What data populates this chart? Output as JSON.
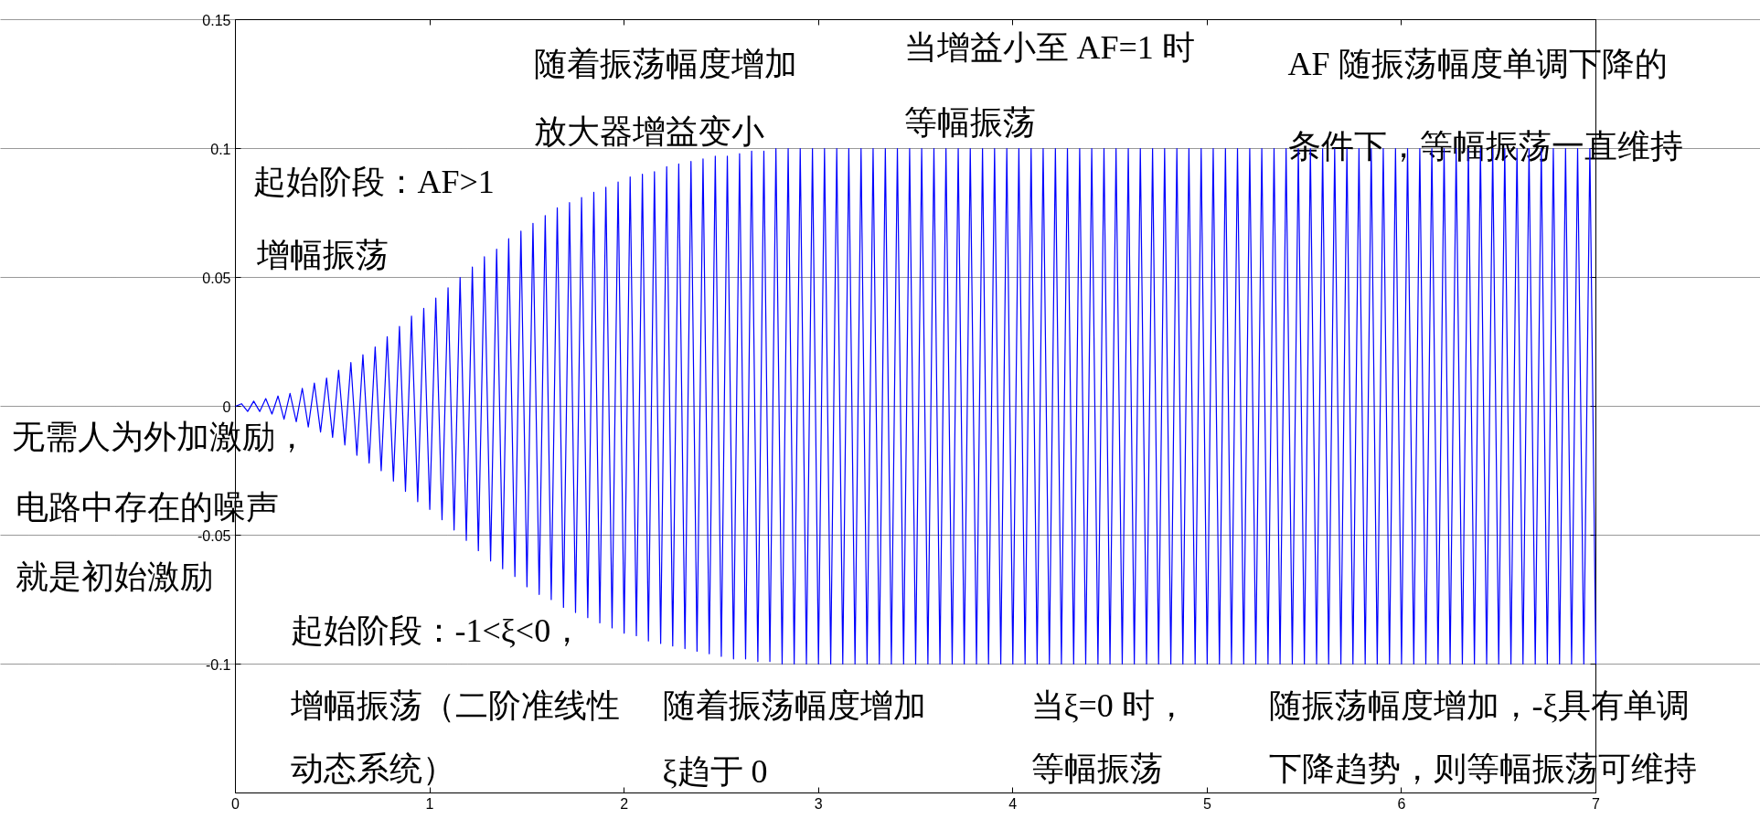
{
  "chart_data": {
    "type": "line",
    "annotations": [
      "随着振荡幅度增加",
      "放大器增益变小",
      "当增益小至 AF=1 时",
      "等幅振荡",
      "AF  随振荡幅度单调下降的",
      "条件下，等幅振荡一直维持",
      "起始阶段：AF>1",
      "增幅振荡",
      "无需人为外加激励，",
      "电路中存在的噪声",
      "就是初始激励",
      "起始阶段：-1<ξ<0，",
      "增幅振荡（二阶准线性",
      "动态系统）",
      "随着振荡幅度增加",
      "ξ趋于 0",
      "当ξ=0  时，",
      "等幅振荡",
      "随振荡幅度增加，-ξ具有单调",
      "下降趋势，则等幅振荡可维持"
    ],
    "xlim": [
      0,
      7
    ],
    "ylim": [
      -0.15,
      0.15
    ],
    "xticks": [
      0,
      1,
      2,
      3,
      4,
      5,
      6,
      7
    ],
    "yticks": [
      -0.1,
      -0.05,
      0,
      0.05,
      0.1,
      0.15
    ],
    "grid": "y",
    "series": [
      {
        "color": "#0000ff",
        "x": [
          0,
          0.031,
          0.063,
          0.094,
          0.125,
          0.156,
          0.188,
          0.219,
          0.25,
          0.281,
          0.313,
          0.344,
          0.375,
          0.406,
          0.438,
          0.469,
          0.5,
          0.531,
          0.563,
          0.594,
          0.625,
          0.656,
          0.688,
          0.719,
          0.75,
          0.781,
          0.813,
          0.844,
          0.875,
          0.906,
          0.938,
          0.969,
          1.0,
          1.031,
          1.063,
          1.094,
          1.125,
          1.156,
          1.188,
          1.219,
          1.25,
          1.281,
          1.313,
          1.344,
          1.375,
          1.406,
          1.438,
          1.469,
          1.5,
          1.531,
          1.563,
          1.594,
          1.625,
          1.656,
          1.688,
          1.719,
          1.75,
          1.781,
          1.813,
          1.844,
          1.875,
          1.906,
          1.938,
          1.969,
          2.0,
          2.031,
          2.063,
          2.094,
          2.125,
          2.156,
          2.188,
          2.219,
          2.25,
          2.281,
          2.313,
          2.344,
          2.375,
          2.406,
          2.438,
          2.469,
          2.5,
          2.531,
          2.563,
          2.594,
          2.625,
          2.656,
          2.688,
          2.719,
          2.75,
          2.781,
          2.813,
          2.844,
          2.875,
          2.906,
          2.938,
          2.969,
          3.0,
          3.031,
          3.063,
          3.094,
          3.125,
          3.156,
          3.188,
          3.219,
          3.25,
          3.281,
          3.313,
          3.344,
          3.375,
          3.406,
          3.438,
          3.469,
          3.5,
          3.531,
          3.563,
          3.594,
          3.625,
          3.656,
          3.688,
          3.719,
          3.75,
          3.781,
          3.813,
          3.844,
          3.875,
          3.906,
          3.938,
          3.969,
          4.0,
          4.031,
          4.063,
          4.094,
          4.125,
          4.156,
          4.188,
          4.219,
          4.25,
          4.281,
          4.313,
          4.344,
          4.375,
          4.406,
          4.438,
          4.469,
          4.5,
          4.531,
          4.563,
          4.594,
          4.625,
          4.656,
          4.688,
          4.719,
          4.75,
          4.781,
          4.813,
          4.844,
          4.875,
          4.906,
          4.938,
          4.969,
          5.0,
          5.031,
          5.063,
          5.094,
          5.125,
          5.156,
          5.188,
          5.219,
          5.25,
          5.281,
          5.313,
          5.344,
          5.375,
          5.406,
          5.438,
          5.469,
          5.5,
          5.531,
          5.563,
          5.594,
          5.625,
          5.656,
          5.688,
          5.719,
          5.75,
          5.781,
          5.813,
          5.844,
          5.875,
          5.906,
          5.938,
          5.969,
          6.0,
          6.031,
          6.063,
          6.094,
          6.125,
          6.156,
          6.188,
          6.219,
          6.25,
          6.281,
          6.313,
          6.344,
          6.375,
          6.406,
          6.438,
          6.469,
          6.5,
          6.531,
          6.563,
          6.594,
          6.625,
          6.656,
          6.688,
          6.719,
          6.75,
          6.781,
          6.813,
          6.844,
          6.875,
          6.906,
          6.938,
          6.969,
          7.0
        ],
        "values": [
          0,
          0.001,
          -0.002,
          0.002,
          -0.002,
          0.003,
          -0.003,
          0.004,
          -0.005,
          0.005,
          -0.006,
          0.007,
          -0.008,
          0.009,
          -0.01,
          0.011,
          -0.012,
          0.014,
          -0.015,
          0.017,
          -0.019,
          0.02,
          -0.022,
          0.023,
          -0.025,
          0.027,
          -0.029,
          0.031,
          -0.033,
          0.035,
          -0.037,
          0.038,
          -0.04,
          0.042,
          -0.044,
          0.046,
          -0.048,
          0.05,
          -0.052,
          0.054,
          -0.056,
          0.058,
          -0.06,
          0.061,
          -0.063,
          0.065,
          -0.066,
          0.068,
          -0.07,
          0.071,
          -0.073,
          0.074,
          -0.075,
          0.077,
          -0.078,
          0.079,
          -0.08,
          0.081,
          -0.082,
          0.083,
          -0.084,
          0.085,
          -0.086,
          0.087,
          -0.088,
          0.089,
          -0.089,
          0.09,
          -0.091,
          0.091,
          -0.092,
          0.093,
          -0.093,
          0.094,
          -0.094,
          0.095,
          -0.095,
          0.096,
          -0.096,
          0.097,
          -0.097,
          0.097,
          -0.098,
          0.098,
          -0.098,
          0.099,
          -0.099,
          0.099,
          -0.099,
          0.1,
          -0.1,
          0.1,
          -0.1,
          0.1,
          -0.1,
          0.1,
          -0.1,
          0.1,
          -0.1,
          0.1,
          -0.1,
          0.1,
          -0.1,
          0.1,
          -0.1,
          0.1,
          -0.1,
          0.1,
          -0.1,
          0.1,
          -0.1,
          0.1,
          -0.1,
          0.1,
          -0.1,
          0.1,
          -0.1,
          0.1,
          -0.1,
          0.1,
          -0.1,
          0.1,
          -0.1,
          0.1,
          -0.1,
          0.1,
          -0.1,
          0.1,
          -0.1,
          0.1,
          -0.1,
          0.1,
          -0.1,
          0.1,
          -0.1,
          0.1,
          -0.1,
          0.1,
          -0.1,
          0.1,
          -0.1,
          0.1,
          -0.1,
          0.1,
          -0.1,
          0.1,
          -0.1,
          0.1,
          -0.1,
          0.1,
          -0.1,
          0.1,
          -0.1,
          0.1,
          -0.1,
          0.1,
          -0.1,
          0.1,
          -0.1,
          0.1,
          -0.1,
          0.1,
          -0.1,
          0.1,
          -0.1,
          0.1,
          -0.1,
          0.1,
          -0.1,
          0.1,
          -0.1,
          0.1,
          -0.1,
          0.1,
          -0.1,
          0.1,
          -0.1,
          0.1,
          -0.1,
          0.1,
          -0.1,
          0.1,
          -0.1,
          0.1,
          -0.1,
          0.1,
          -0.1,
          0.1,
          -0.1,
          0.1,
          -0.1,
          0.1,
          -0.1,
          0.1,
          -0.1,
          0.1,
          -0.1,
          0.1,
          -0.1,
          0.1,
          -0.1,
          0.1,
          -0.1,
          0.1,
          -0.1,
          0.1,
          -0.1,
          0.1,
          -0.1,
          0.1,
          -0.1,
          0.1,
          -0.1,
          0.1,
          -0.1,
          0.1,
          -0.1,
          0.1,
          -0.1,
          0.1,
          -0.1,
          0.1,
          -0.1,
          0.1,
          -0.1
        ]
      }
    ]
  }
}
